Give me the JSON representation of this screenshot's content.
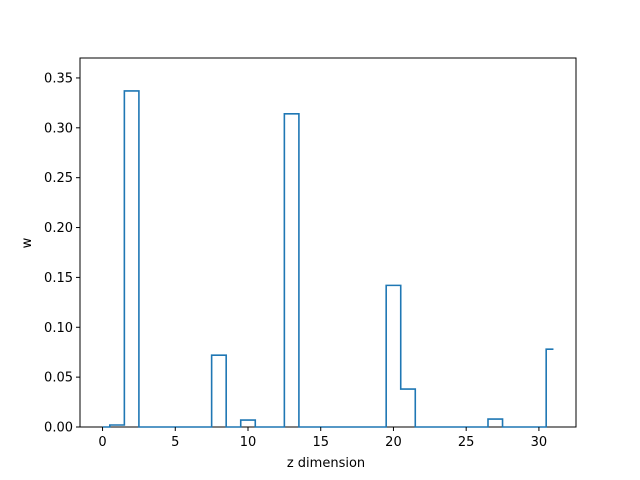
{
  "chart_data": {
    "type": "step",
    "xlabel": "z dimension",
    "ylabel": "w",
    "xlim": [
      -1.55,
      32.55
    ],
    "ylim": [
      0.0,
      0.37
    ],
    "xticks": [
      0,
      5,
      10,
      15,
      20,
      25,
      30
    ],
    "yticks": [
      0.0,
      0.05,
      0.1,
      0.15,
      0.2,
      0.25,
      0.3,
      0.35
    ],
    "ytick_labels": [
      "0.00",
      "0.05",
      "0.10",
      "0.15",
      "0.20",
      "0.25",
      "0.30",
      "0.35"
    ],
    "xtick_labels": [
      "0",
      "5",
      "10",
      "15",
      "20",
      "25",
      "30"
    ],
    "line_color": "#1f77b4",
    "grid": false,
    "x": [
      0,
      1,
      2,
      3,
      4,
      5,
      6,
      7,
      8,
      9,
      10,
      11,
      12,
      13,
      14,
      15,
      16,
      17,
      18,
      19,
      20,
      21,
      22,
      23,
      24,
      25,
      26,
      27,
      28,
      29,
      30,
      31
    ],
    "values": [
      0.0,
      0.002,
      0.337,
      0.0,
      0.0,
      0.0,
      0.0,
      0.0,
      0.072,
      0.0,
      0.007,
      0.0,
      0.0,
      0.314,
      0.0,
      0.0,
      0.0,
      0.0,
      0.0,
      0.0,
      0.142,
      0.038,
      0.0,
      0.0,
      0.0,
      0.0,
      0.0,
      0.008,
      0.0,
      0.0,
      0.0,
      0.078
    ]
  }
}
